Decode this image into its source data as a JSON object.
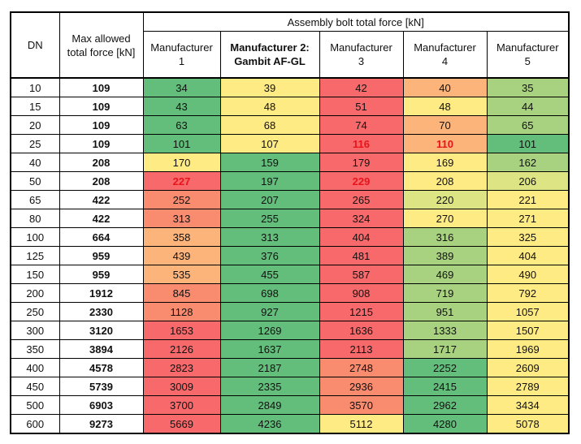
{
  "header": {
    "dn": "DN",
    "max_allowed": "Max allowed total force [kN]",
    "group": "Assembly bolt total force [kN]",
    "manufacturers": [
      "Manufacturer 1",
      "Manufacturer 2: Gambit AF-GL",
      "Manufacturer 3",
      "Manufacturer 4",
      "Manufacturer 5"
    ]
  },
  "colors": {
    "dark_green": "#63be7b",
    "light_green": "#a8d27f",
    "yellow_green": "#dde483",
    "yellow": "#ffeb84",
    "orange": "#fdb47a",
    "light_red": "#f98b6f",
    "red": "#f8696b",
    "over_text": "#e8141b"
  },
  "rows": [
    {
      "dn": "10",
      "max": "109",
      "v": [
        "34",
        "39",
        "42",
        "40",
        "35"
      ],
      "c": [
        "dark_green",
        "yellow",
        "red",
        "orange",
        "light_green"
      ],
      "over": [
        false,
        false,
        false,
        false,
        false
      ]
    },
    {
      "dn": "15",
      "max": "109",
      "v": [
        "43",
        "48",
        "51",
        "48",
        "44"
      ],
      "c": [
        "dark_green",
        "yellow",
        "red",
        "yellow",
        "light_green"
      ],
      "over": [
        false,
        false,
        false,
        false,
        false
      ]
    },
    {
      "dn": "20",
      "max": "109",
      "v": [
        "63",
        "68",
        "74",
        "70",
        "65"
      ],
      "c": [
        "dark_green",
        "yellow",
        "red",
        "orange",
        "light_green"
      ],
      "over": [
        false,
        false,
        false,
        false,
        false
      ]
    },
    {
      "dn": "25",
      "max": "109",
      "v": [
        "101",
        "107",
        "116",
        "110",
        "101"
      ],
      "c": [
        "dark_green",
        "yellow",
        "red",
        "orange",
        "dark_green"
      ],
      "over": [
        false,
        false,
        true,
        true,
        false
      ]
    },
    {
      "dn": "40",
      "max": "208",
      "v": [
        "170",
        "159",
        "179",
        "169",
        "162"
      ],
      "c": [
        "yellow",
        "dark_green",
        "red",
        "yellow",
        "light_green"
      ],
      "over": [
        false,
        false,
        false,
        false,
        false
      ]
    },
    {
      "dn": "50",
      "max": "208",
      "v": [
        "227",
        "197",
        "229",
        "208",
        "206"
      ],
      "c": [
        "red",
        "dark_green",
        "red",
        "yellow",
        "yellow_green"
      ],
      "over": [
        true,
        false,
        true,
        false,
        false
      ]
    },
    {
      "dn": "65",
      "max": "422",
      "v": [
        "252",
        "207",
        "265",
        "220",
        "221"
      ],
      "c": [
        "light_red",
        "dark_green",
        "red",
        "yellow_green",
        "yellow"
      ],
      "over": [
        false,
        false,
        false,
        false,
        false
      ]
    },
    {
      "dn": "80",
      "max": "422",
      "v": [
        "313",
        "255",
        "324",
        "270",
        "271"
      ],
      "c": [
        "light_red",
        "dark_green",
        "red",
        "yellow",
        "yellow"
      ],
      "over": [
        false,
        false,
        false,
        false,
        false
      ]
    },
    {
      "dn": "100",
      "max": "664",
      "v": [
        "358",
        "313",
        "404",
        "316",
        "325"
      ],
      "c": [
        "orange",
        "dark_green",
        "red",
        "light_green",
        "yellow"
      ],
      "over": [
        false,
        false,
        false,
        false,
        false
      ]
    },
    {
      "dn": "125",
      "max": "959",
      "v": [
        "439",
        "376",
        "481",
        "389",
        "404"
      ],
      "c": [
        "orange",
        "dark_green",
        "red",
        "light_green",
        "yellow"
      ],
      "over": [
        false,
        false,
        false,
        false,
        false
      ]
    },
    {
      "dn": "150",
      "max": "959",
      "v": [
        "535",
        "455",
        "587",
        "469",
        "490"
      ],
      "c": [
        "orange",
        "dark_green",
        "red",
        "light_green",
        "yellow"
      ],
      "over": [
        false,
        false,
        false,
        false,
        false
      ]
    },
    {
      "dn": "200",
      "max": "1912",
      "v": [
        "845",
        "698",
        "908",
        "719",
        "792"
      ],
      "c": [
        "light_red",
        "dark_green",
        "red",
        "light_green",
        "yellow"
      ],
      "over": [
        false,
        false,
        false,
        false,
        false
      ]
    },
    {
      "dn": "250",
      "max": "2330",
      "v": [
        "1128",
        "927",
        "1215",
        "951",
        "1057"
      ],
      "c": [
        "light_red",
        "dark_green",
        "red",
        "light_green",
        "yellow"
      ],
      "over": [
        false,
        false,
        false,
        false,
        false
      ]
    },
    {
      "dn": "300",
      "max": "3120",
      "v": [
        "1653",
        "1269",
        "1636",
        "1333",
        "1507"
      ],
      "c": [
        "red",
        "dark_green",
        "red",
        "light_green",
        "yellow"
      ],
      "over": [
        false,
        false,
        false,
        false,
        false
      ]
    },
    {
      "dn": "350",
      "max": "3894",
      "v": [
        "2126",
        "1637",
        "2113",
        "1717",
        "1969"
      ],
      "c": [
        "red",
        "dark_green",
        "red",
        "light_green",
        "yellow"
      ],
      "over": [
        false,
        false,
        false,
        false,
        false
      ]
    },
    {
      "dn": "400",
      "max": "4578",
      "v": [
        "2823",
        "2187",
        "2748",
        "2252",
        "2609"
      ],
      "c": [
        "red",
        "dark_green",
        "light_red",
        "dark_green",
        "yellow"
      ],
      "over": [
        false,
        false,
        false,
        false,
        false
      ]
    },
    {
      "dn": "450",
      "max": "5739",
      "v": [
        "3009",
        "2335",
        "2936",
        "2415",
        "2789"
      ],
      "c": [
        "red",
        "dark_green",
        "light_red",
        "dark_green",
        "yellow"
      ],
      "over": [
        false,
        false,
        false,
        false,
        false
      ]
    },
    {
      "dn": "500",
      "max": "6903",
      "v": [
        "3700",
        "2849",
        "3570",
        "2962",
        "3434"
      ],
      "c": [
        "red",
        "dark_green",
        "light_red",
        "dark_green",
        "yellow"
      ],
      "over": [
        false,
        false,
        false,
        false,
        false
      ]
    },
    {
      "dn": "600",
      "max": "9273",
      "v": [
        "5669",
        "4236",
        "5112",
        "4280",
        "5078"
      ],
      "c": [
        "red",
        "dark_green",
        "yellow",
        "dark_green",
        "yellow"
      ],
      "over": [
        false,
        false,
        false,
        false,
        false
      ]
    }
  ]
}
